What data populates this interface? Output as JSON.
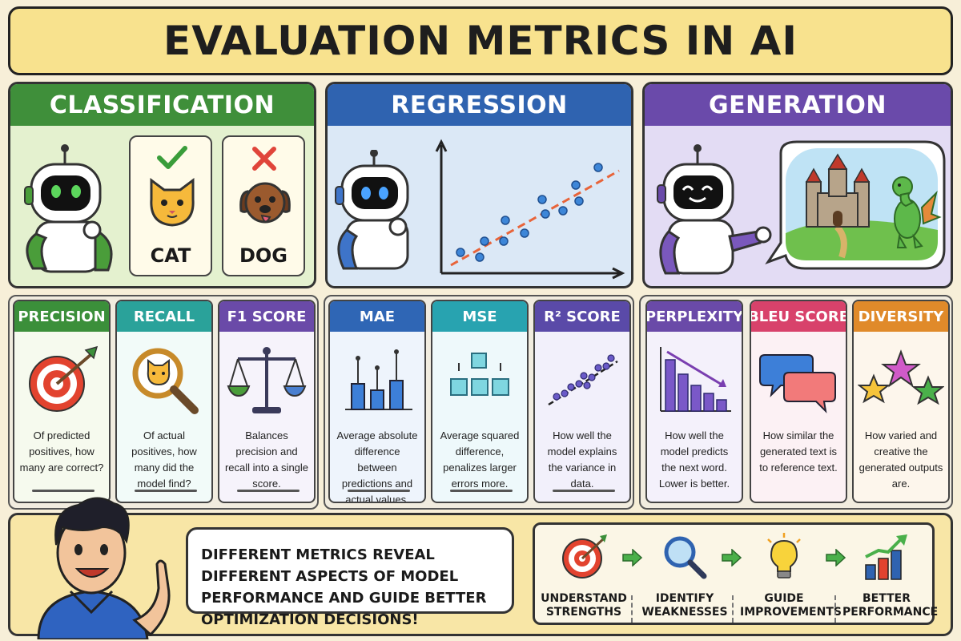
{
  "title": "EVALUATION METRICS IN AI",
  "colors": {
    "classification": "#3f8f3a",
    "regression": "#2f63b0",
    "generation": "#6a4aaa",
    "precision": "#3b8f3a",
    "recall": "#2aa29a",
    "f1": "#6a4aa8",
    "mae": "#2f66b5",
    "mse": "#28a3b0",
    "r2": "#5a4aa8",
    "perplexity": "#6a4aa8",
    "bleu": "#d8426b",
    "diversity": "#e08a2a"
  },
  "panels": {
    "classification": {
      "title": "CLASSIFICATION",
      "cards": [
        {
          "label": "CAT",
          "mark": "check"
        },
        {
          "label": "DOG",
          "mark": "cross"
        }
      ]
    },
    "regression": {
      "title": "REGRESSION"
    },
    "generation": {
      "title": "GENERATION"
    }
  },
  "metrics": [
    {
      "name": "PRECISION",
      "icon": "target-icon",
      "desc": "Of predicted positives, how many are correct?"
    },
    {
      "name": "RECALL",
      "icon": "magnifier-icon",
      "desc": "Of actual positives, how many did the model find?"
    },
    {
      "name": "F1 SCORE",
      "icon": "scale-icon",
      "desc": "Balances precision and recall into a single score."
    },
    {
      "name": "MAE",
      "icon": "bar-error-icon",
      "desc": "Average absolute difference between predictions and actual values."
    },
    {
      "name": "MSE",
      "icon": "squares-icon",
      "desc": "Average squared difference, penalizes larger errors more."
    },
    {
      "name": "R² SCORE",
      "icon": "scatter-fit-icon",
      "desc": "How well the model explains the variance in data."
    },
    {
      "name": "PERPLEXITY",
      "icon": "descending-bars-icon",
      "desc": "How well the model predicts the next word. Lower is better."
    },
    {
      "name": "BLEU SCORE",
      "icon": "chat-bubbles-icon",
      "desc": "How similar the generated text is to reference text."
    },
    {
      "name": "DIVERSITY",
      "icon": "stars-icon",
      "desc": "How varied and creative the generated outputs are."
    }
  ],
  "bottom": {
    "message": "DIFFERENT METRICS REVEAL DIFFERENT ASPECTS OF MODEL PERFORMANCE AND GUIDE BETTER OPTIMIZATION DECISIONS!",
    "steps": [
      {
        "label": "UNDERSTAND STRENGTHS",
        "icon": "target-icon"
      },
      {
        "label": "IDENTIFY WEAKNESSES",
        "icon": "magnifier-icon"
      },
      {
        "label": "GUIDE IMPROVEMENTS",
        "icon": "lightbulb-icon"
      },
      {
        "label": "BETTER PERFORMANCE",
        "icon": "growth-chart-icon"
      }
    ]
  }
}
